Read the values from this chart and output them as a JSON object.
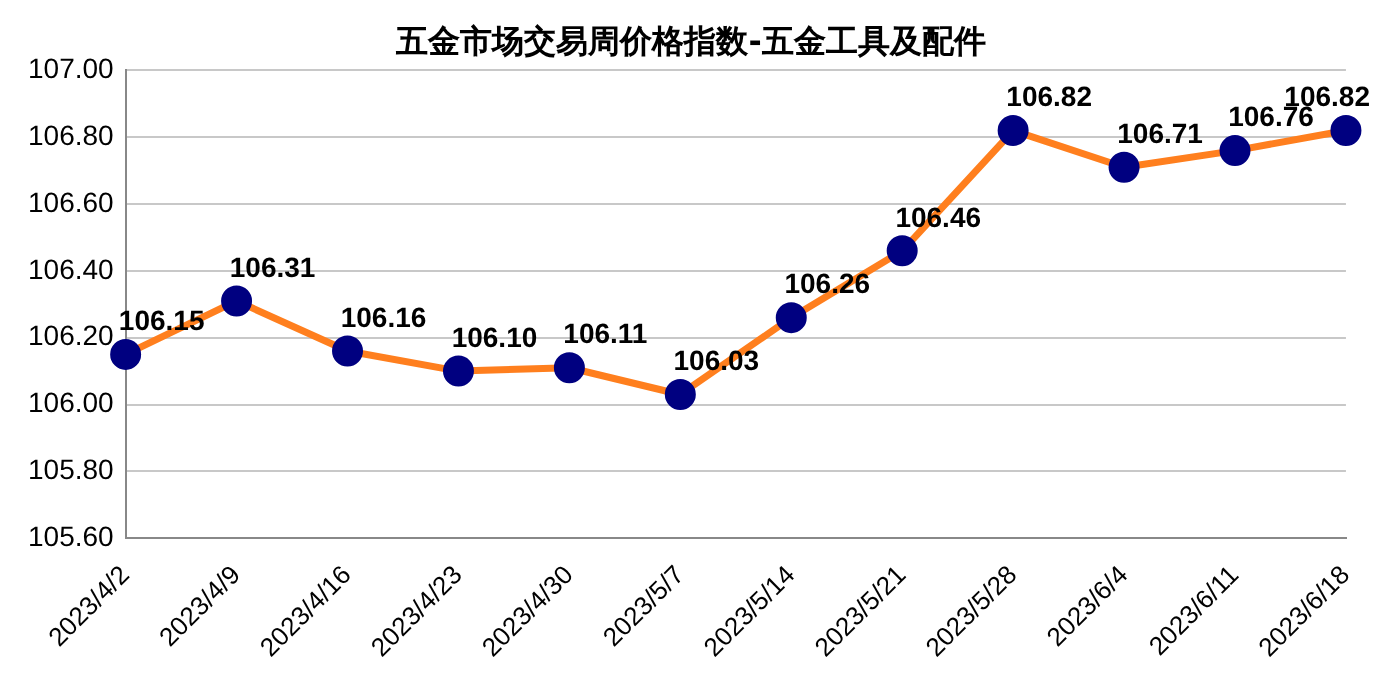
{
  "chart_data": {
    "type": "line",
    "title": "五金市场交易周价格指数-五金工具及配件",
    "categories": [
      "2023/4/2",
      "2023/4/9",
      "2023/4/16",
      "2023/4/23",
      "2023/4/30",
      "2023/5/7",
      "2023/5/14",
      "2023/5/21",
      "2023/5/28",
      "2023/6/4",
      "2023/6/11",
      "2023/6/18"
    ],
    "series": [
      {
        "color": "#ff7f1e",
        "values": [
          106.15,
          106.31,
          106.16,
          106.1,
          106.11,
          106.03,
          106.26,
          106.46,
          106.82,
          106.71,
          106.76,
          106.82
        ],
        "value_labels": [
          "106.15",
          "106.31",
          "106.16",
          "106.10",
          "106.11",
          "106.03",
          "106.26",
          "106.46",
          "106.82",
          "106.71",
          "106.76",
          "106.82"
        ]
      }
    ],
    "ylim": [
      105.6,
      107.0
    ],
    "yticks": [
      {
        "value": 105.6,
        "label": "105.60"
      },
      {
        "value": 105.8,
        "label": "105.80"
      },
      {
        "value": 106.0,
        "label": "106.00"
      },
      {
        "value": 106.2,
        "label": "106.20"
      },
      {
        "value": 106.4,
        "label": "106.40"
      },
      {
        "value": 106.6,
        "label": "106.60"
      },
      {
        "value": 106.8,
        "label": "106.80"
      },
      {
        "value": 107.0,
        "label": "107.00"
      }
    ],
    "grid": "y",
    "marker": "circle",
    "line_style": "solid",
    "legend": false
  }
}
